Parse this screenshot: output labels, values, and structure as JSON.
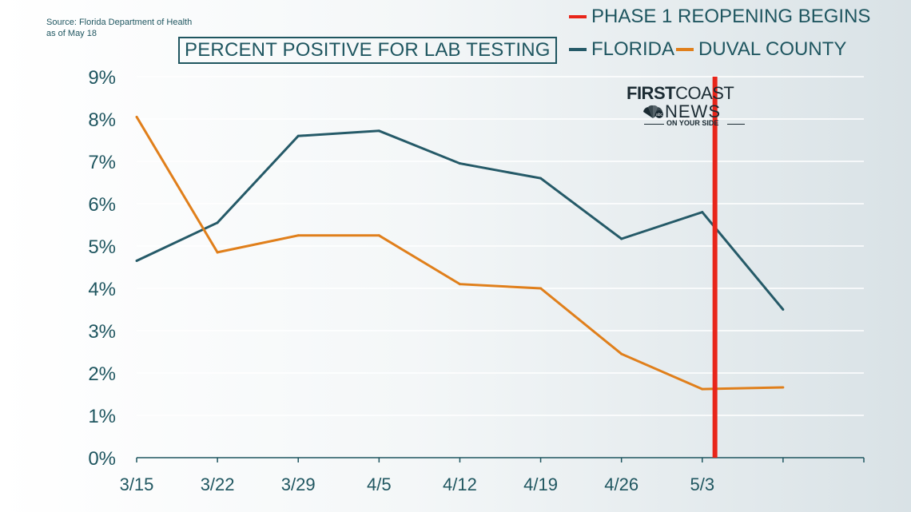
{
  "source": {
    "line1": "Source: Florida Department of Health",
    "line2": "as of May 18"
  },
  "legend": {
    "phase_label": "PHASE 1 REOPENING BEGINS",
    "florida_label": "FLORIDA",
    "duval_label": "DUVAL COUNTY"
  },
  "logo": {
    "first": "FIRST",
    "coast": "COAST",
    "news": "NEWS",
    "tagline": "ON YOUR SIDE"
  },
  "colors": {
    "florida": "#255a68",
    "duval": "#e07f1b",
    "phase": "#e8251a",
    "text": "#1f5660",
    "grid": "#ffffff",
    "axis": "#1f5660"
  },
  "chart_data": {
    "type": "line",
    "title": "PERCENT POSITIVE FOR LAB TESTING",
    "xlabel": "",
    "ylabel": "",
    "x_tick_labels": [
      "3/15",
      "3/22",
      "3/29",
      "4/5",
      "4/12",
      "4/19",
      "4/26",
      "5/3"
    ],
    "y_tick_labels": [
      "0%",
      "1%",
      "2%",
      "3%",
      "4%",
      "5%",
      "6%",
      "7%",
      "8%",
      "9%"
    ],
    "ylim": [
      0,
      9
    ],
    "x_days_range": [
      0,
      63
    ],
    "grid": true,
    "legend_position": "top-right",
    "series": [
      {
        "name": "FLORIDA",
        "x_days": [
          0,
          7,
          14,
          21,
          28,
          35,
          42,
          49,
          56
        ],
        "values": [
          4.65,
          5.55,
          7.6,
          7.72,
          6.95,
          6.6,
          5.17,
          5.8,
          3.5
        ]
      },
      {
        "name": "DUVAL COUNTY",
        "x_days": [
          0,
          7,
          14,
          21,
          28,
          35,
          42,
          49,
          56
        ],
        "values": [
          8.05,
          4.85,
          5.25,
          5.25,
          4.1,
          4.0,
          2.45,
          1.62,
          1.66
        ]
      }
    ],
    "annotations": [
      {
        "label": "PHASE 1 REOPENING BEGINS",
        "type": "vertical-line",
        "x_days": 50.1
      }
    ]
  }
}
